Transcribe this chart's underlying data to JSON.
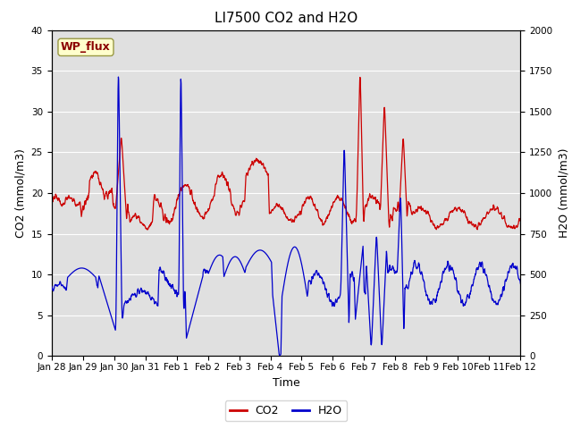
{
  "title": "LI7500 CO2 and H2O",
  "xlabel": "Time",
  "ylabel_left": "CO2 (mmol/m3)",
  "ylabel_right": "H2O (mmol/m3)",
  "ylim_left": [
    0,
    40
  ],
  "ylim_right": [
    0,
    2000
  ],
  "xtick_labels": [
    "Jan 28",
    "Jan 29",
    "Jan 30",
    "Jan 31",
    "Feb 1",
    "Feb 2",
    "Feb 3",
    "Feb 4",
    "Feb 5",
    "Feb 6",
    "Feb 7",
    "Feb 8",
    "Feb 9",
    "Feb 10",
    "Feb 11",
    "Feb 12"
  ],
  "co2_color": "#CC0000",
  "h2o_color": "#0000CC",
  "background_color": "#E0E0E0",
  "title_fontsize": 11,
  "axis_label_fontsize": 9,
  "tick_fontsize": 7.5,
  "legend_fontsize": 9,
  "watermark_text": "WP_flux",
  "watermark_color": "#8B0000",
  "watermark_bg": "#FFFFCC",
  "watermark_edge": "#999944"
}
